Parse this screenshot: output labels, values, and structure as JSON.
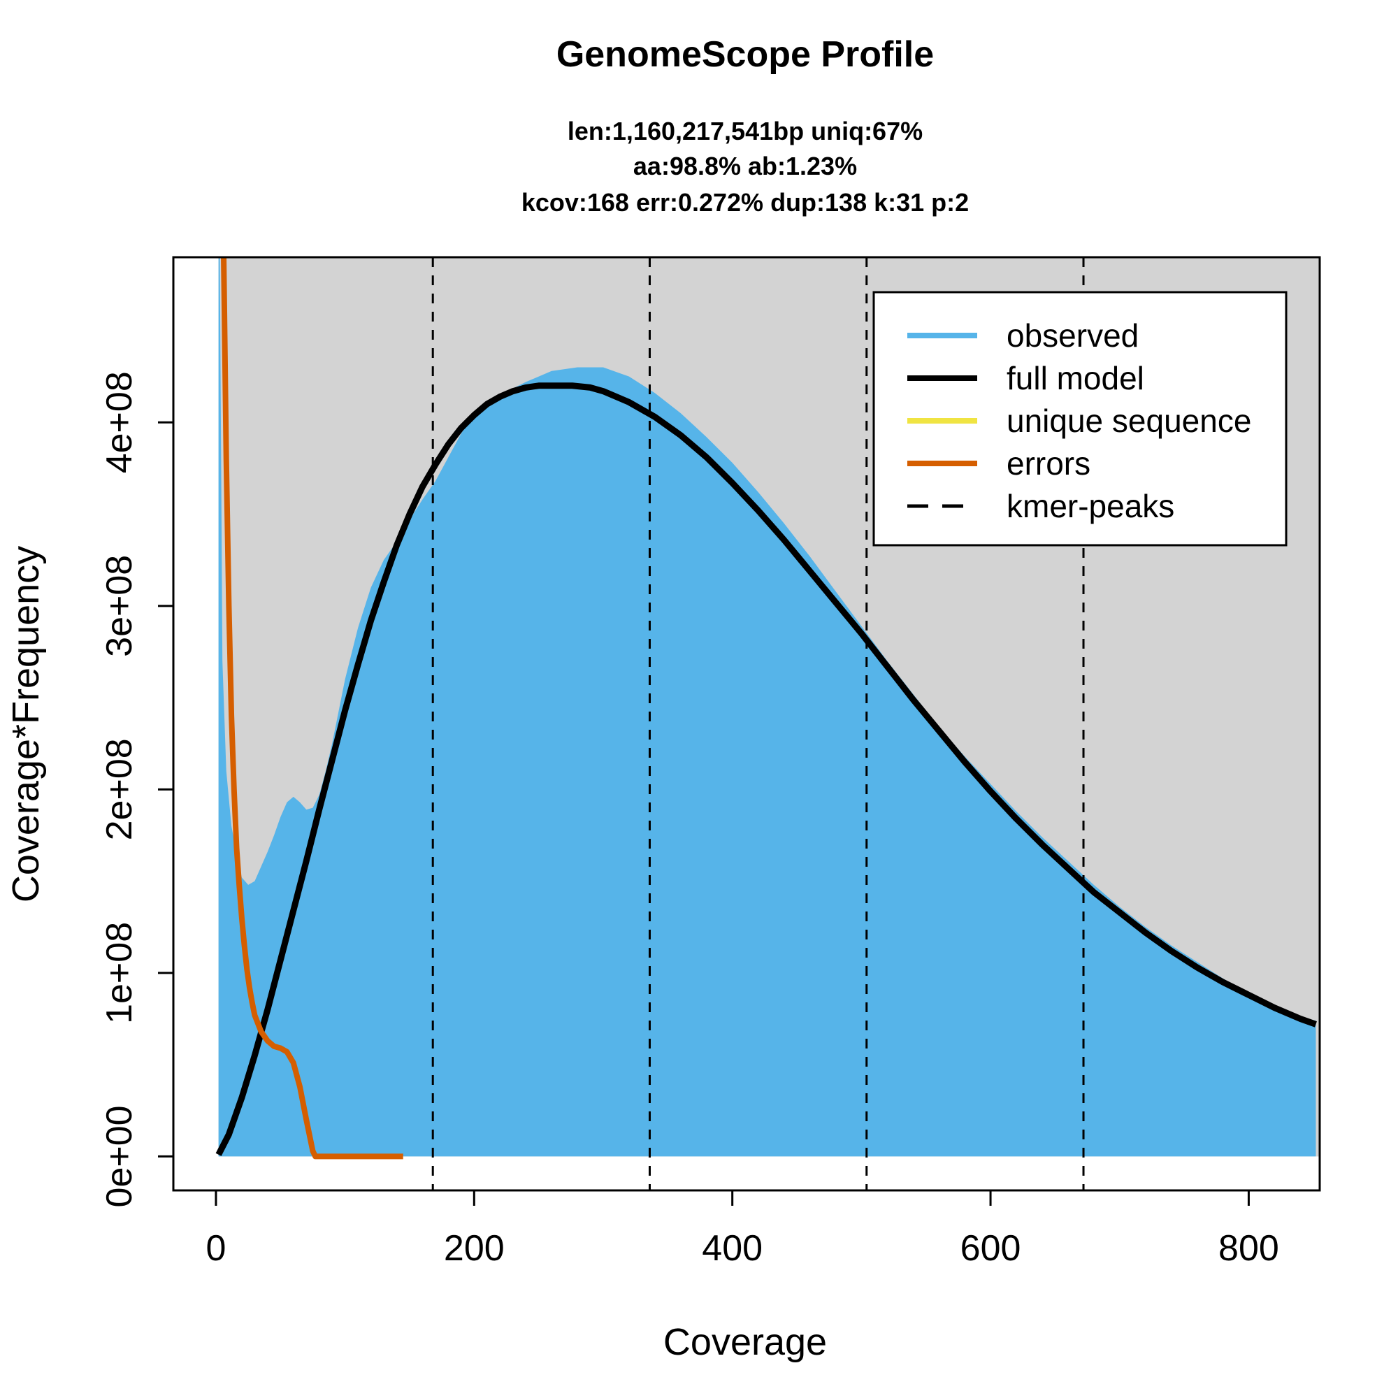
{
  "chart_data": {
    "type": "area",
    "title": "GenomeScope Profile",
    "subtitle_lines": [
      "len:1,160,217,541bp uniq:67%",
      "aa:98.8% ab:1.23%",
      "kcov:168 err:0.272%  dup:138  k:31 p:2"
    ],
    "xlabel": "Coverage",
    "ylabel": "Coverage*Frequency",
    "xlim": [
      -33,
      855
    ],
    "ylim": [
      -18500000,
      490000000
    ],
    "x_ticks": [
      0,
      200,
      400,
      600,
      800
    ],
    "x_tick_labels": [
      "0",
      "200",
      "400",
      "600",
      "800"
    ],
    "y_ticks": [
      0,
      100000000,
      200000000,
      300000000,
      400000000
    ],
    "y_tick_labels": [
      "0e+00",
      "1e+08",
      "2e+08",
      "3e+08",
      "4e+08"
    ],
    "background_color": "#d3d3d3",
    "kmer_peaks": [
      168,
      336,
      504,
      672
    ],
    "legend": {
      "position": "top-right",
      "entries": [
        {
          "label": "observed",
          "color": "#56b4e9",
          "style": "solid"
        },
        {
          "label": "full model",
          "color": "#000000",
          "style": "solid"
        },
        {
          "label": "unique sequence",
          "color": "#f0e442",
          "style": "solid"
        },
        {
          "label": "errors",
          "color": "#d55e00",
          "style": "solid"
        },
        {
          "label": "kmer-peaks",
          "color": "#000000",
          "style": "dashed"
        }
      ]
    },
    "series": [
      {
        "name": "observed",
        "kind": "area",
        "color": "#56b4e9",
        "x": [
          2,
          3,
          5,
          8,
          12,
          16,
          20,
          25,
          30,
          35,
          40,
          45,
          50,
          55,
          60,
          65,
          70,
          75,
          80,
          85,
          90,
          100,
          110,
          120,
          130,
          140,
          150,
          160,
          170,
          180,
          190,
          200,
          220,
          240,
          260,
          280,
          300,
          320,
          340,
          360,
          380,
          400,
          420,
          440,
          460,
          480,
          500,
          520,
          540,
          560,
          580,
          600,
          620,
          640,
          660,
          680,
          700,
          720,
          740,
          760,
          780,
          800,
          820,
          840,
          852
        ],
        "y": [
          490000000,
          490000000,
          270000000,
          210000000,
          180000000,
          165000000,
          152000000,
          148000000,
          150000000,
          158000000,
          166000000,
          175000000,
          185000000,
          193000000,
          196000000,
          193000000,
          189000000,
          190000000,
          197000000,
          210000000,
          225000000,
          260000000,
          288000000,
          310000000,
          325000000,
          335000000,
          347000000,
          358000000,
          368000000,
          381000000,
          394000000,
          405000000,
          415000000,
          422000000,
          428000000,
          430000000,
          430000000,
          425000000,
          416000000,
          405000000,
          392000000,
          378000000,
          362000000,
          345000000,
          327000000,
          308000000,
          289000000,
          270000000,
          252000000,
          234000000,
          218000000,
          203000000,
          188000000,
          174000000,
          161000000,
          148000000,
          136000000,
          125000000,
          115000000,
          106000000,
          97000000,
          89000000,
          82000000,
          76000000,
          74000000
        ]
      },
      {
        "name": "full model",
        "kind": "line",
        "color": "#000000",
        "x": [
          2,
          10,
          20,
          30,
          40,
          50,
          60,
          70,
          80,
          90,
          100,
          110,
          120,
          130,
          140,
          150,
          160,
          170,
          180,
          190,
          200,
          210,
          220,
          230,
          240,
          250,
          260,
          270,
          276,
          290,
          300,
          320,
          340,
          360,
          380,
          400,
          420,
          440,
          460,
          480,
          500,
          520,
          540,
          560,
          580,
          600,
          620,
          640,
          660,
          680,
          700,
          720,
          740,
          760,
          780,
          800,
          820,
          840,
          852
        ],
        "y": [
          1000000,
          12000000,
          32000000,
          55000000,
          80000000,
          107000000,
          134000000,
          161000000,
          189000000,
          216000000,
          243000000,
          268000000,
          292000000,
          313000000,
          333000000,
          350000000,
          365000000,
          377000000,
          388000000,
          397000000,
          404000000,
          410000000,
          414000000,
          417000000,
          419000000,
          420000000,
          420000000,
          420000000,
          420000000,
          419000000,
          417000000,
          411000000,
          403000000,
          393000000,
          381000000,
          367000000,
          352000000,
          336000000,
          319000000,
          302000000,
          285000000,
          267000000,
          249000000,
          232000000,
          215000000,
          199000000,
          184000000,
          170000000,
          157000000,
          144000000,
          133000000,
          122000000,
          112000000,
          103000000,
          95000000,
          88000000,
          81000000,
          75000000,
          72000000
        ]
      },
      {
        "name": "errors",
        "kind": "line",
        "color": "#d55e00",
        "x": [
          6,
          8,
          10,
          12,
          14,
          16,
          18,
          20,
          22,
          24,
          26,
          28,
          30,
          35,
          40,
          45,
          50,
          55,
          60,
          65,
          70,
          75,
          77,
          80,
          100,
          120,
          145
        ],
        "y": [
          490000000,
          380000000,
          300000000,
          240000000,
          200000000,
          168000000,
          148000000,
          130000000,
          115000000,
          102000000,
          92000000,
          84000000,
          77000000,
          68000000,
          63000000,
          60000000,
          59000000,
          57000000,
          51000000,
          38000000,
          20000000,
          3000000,
          0,
          0,
          0,
          0,
          0
        ]
      }
    ]
  }
}
